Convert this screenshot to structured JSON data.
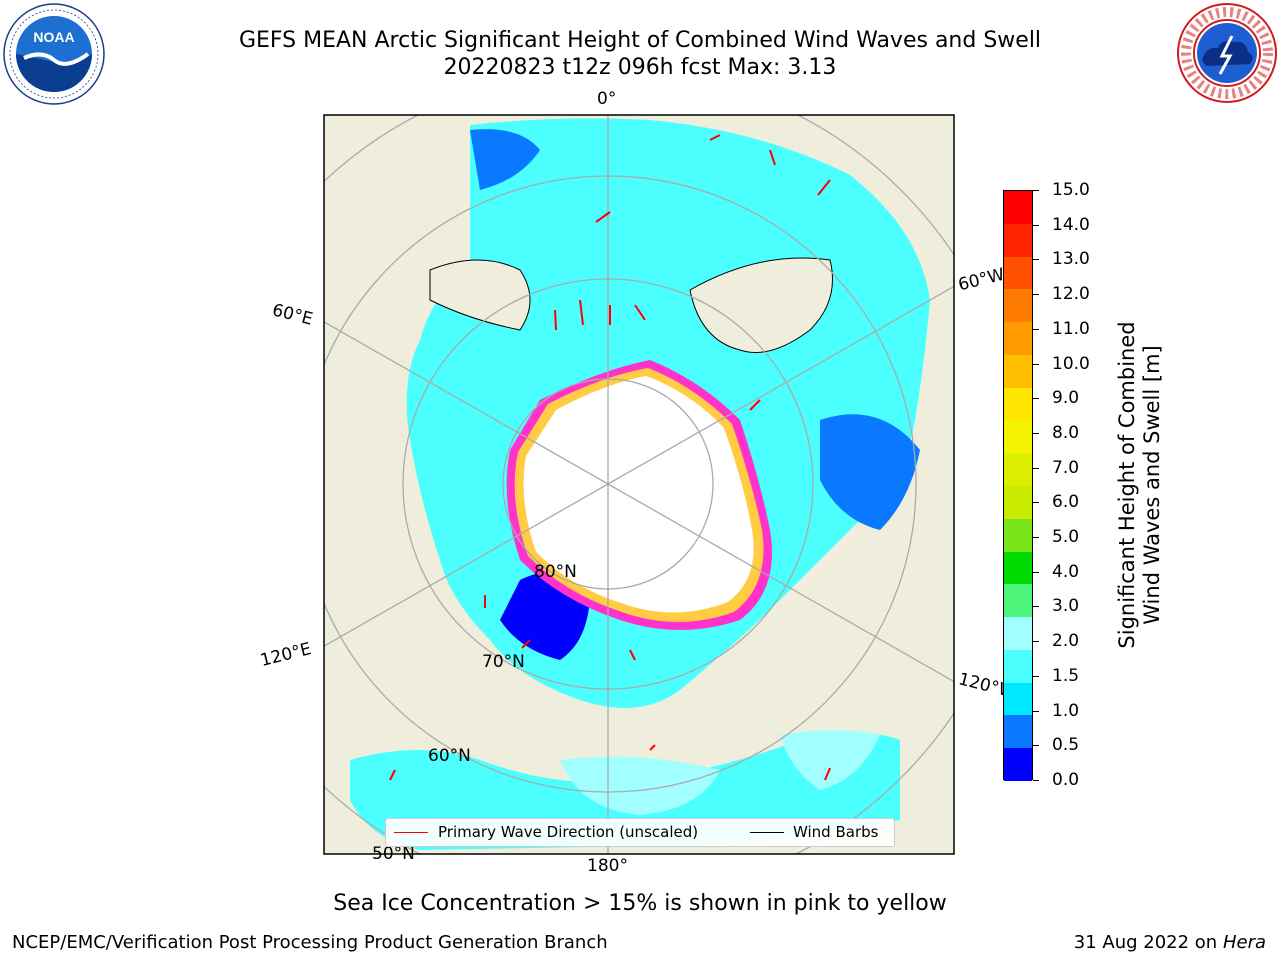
{
  "header": {
    "title_line1": "GEFS MEAN Arctic Significant Height of Combined Wind Waves and Swell",
    "title_line2": "20220823 t12z 096h fcst   Max: 3.13"
  },
  "logos": {
    "noaa_text": "NOAA",
    "nws_text": "NATIONAL WEATHER SERVICE"
  },
  "map": {
    "projection": "north-polar-stereographic",
    "longitude_labels": [
      "0°",
      "60°W",
      "120°W",
      "180°",
      "120°E",
      "60°E"
    ],
    "latitude_labels": [
      "80°N",
      "70°N",
      "60°N",
      "50°N"
    ],
    "colors": {
      "land": "#efeedd",
      "ice_free_core": "#ffffff",
      "grid": "#aaaaaa",
      "wave_arrow": "#ff0000",
      "wind_barb": "#000000",
      "ice_pink": "#ff33cc",
      "ice_yellow": "#ffcc44"
    }
  },
  "legend": {
    "wave_direction": "Primary Wave Direction (unscaled)",
    "wind_barbs": "Wind Barbs"
  },
  "colorbar": {
    "title_line1": "Significant Height of Combined",
    "title_line2": "Wind Waves and Swell [m]",
    "ticks": [
      "15.0",
      "14.0",
      "13.0",
      "12.0",
      "11.0",
      "10.0",
      "9.0",
      "8.0",
      "7.0",
      "6.0",
      "5.0",
      "4.0",
      "3.0",
      "2.0",
      "1.5",
      "1.0",
      "0.5",
      "0.0"
    ],
    "bins": [
      {
        "color": "#ff0000"
      },
      {
        "color": "#ff2400"
      },
      {
        "color": "#ff5000"
      },
      {
        "color": "#ff7a00"
      },
      {
        "color": "#ff9a00"
      },
      {
        "color": "#ffbe00"
      },
      {
        "color": "#ffe600"
      },
      {
        "color": "#f4f400"
      },
      {
        "color": "#dcef00"
      },
      {
        "color": "#c8eb00"
      },
      {
        "color": "#78e51a"
      },
      {
        "color": "#00dc00"
      },
      {
        "color": "#4cf57a"
      },
      {
        "color": "#a2ffff"
      },
      {
        "color": "#4cffff"
      },
      {
        "color": "#00e8ff"
      },
      {
        "color": "#0a78ff"
      },
      {
        "color": "#0000ff"
      }
    ]
  },
  "notes": {
    "ice_note": "Sea Ice Concentration > 15% is shown in pink to yellow"
  },
  "footer": {
    "left": "NCEP/EMC/Verification Post Processing Product Generation Branch",
    "date": "31 Aug 2022 on",
    "system": "Hera"
  }
}
